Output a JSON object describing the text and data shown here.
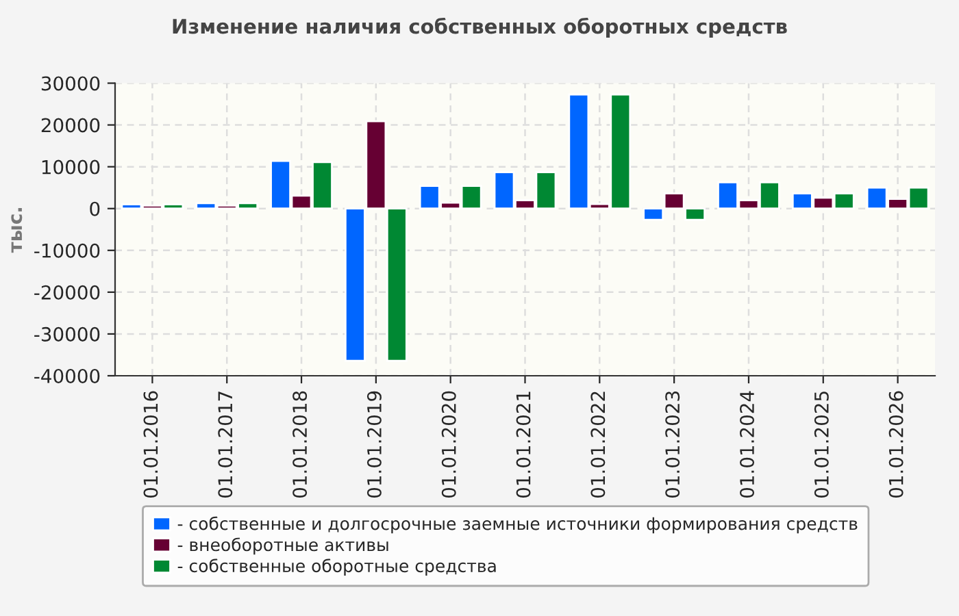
{
  "chart_data": {
    "type": "bar",
    "title": "Изменение наличия собственных оборотных средств",
    "ylabel": "тыс.",
    "categories": [
      "01.01.2016",
      "01.01.2017",
      "01.01.2018",
      "01.01.2019",
      "01.01.2020",
      "01.01.2021",
      "01.01.2022",
      "01.01.2023",
      "01.01.2024",
      "01.01.2025",
      "01.01.2026"
    ],
    "series": [
      {
        "name": "- собственные и долгосрочные заемные источники формирования средств",
        "color": "#0066ff",
        "values": [
          1000,
          1300,
          11400,
          -36400,
          5400,
          8700,
          27300,
          -2700,
          6300,
          3600,
          5000
        ]
      },
      {
        "name": "- внеоборотные активы",
        "color": "#660033",
        "values": [
          700,
          700,
          3100,
          20900,
          1400,
          2000,
          1100,
          3600,
          2000,
          2600,
          2300
        ]
      },
      {
        "name": "- собственные оборотные средства",
        "color": "#008833",
        "values": [
          1000,
          1300,
          11100,
          -36400,
          5400,
          8700,
          27300,
          -2700,
          6300,
          3600,
          5000
        ]
      }
    ],
    "ylim": [
      -40000,
      30000
    ],
    "yticks": [
      -40000,
      -30000,
      -20000,
      -10000,
      0,
      10000,
      20000,
      30000
    ],
    "grid": true,
    "legend": "bottom"
  }
}
